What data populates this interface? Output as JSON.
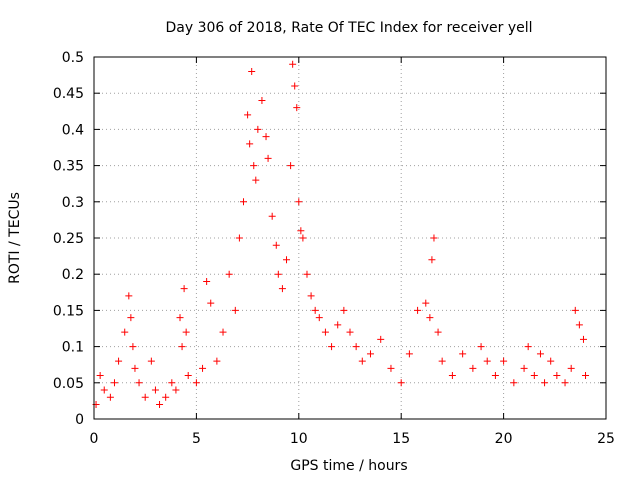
{
  "chart_data": {
    "type": "scatter",
    "title": "Day 306 of 2018, Rate Of TEC Index for receiver yell",
    "xlabel": "GPS time / hours",
    "ylabel": "ROTI / TECUs",
    "xlim": [
      0,
      25
    ],
    "ylim": [
      0,
      0.5
    ],
    "xticks": [
      0,
      5,
      10,
      15,
      20,
      25
    ],
    "yticks": [
      0,
      0.05,
      0.1,
      0.15,
      0.2,
      0.25,
      0.3,
      0.35,
      0.4,
      0.45,
      0.5
    ],
    "xtick_labels": [
      "0",
      "5",
      "10",
      "15",
      "20",
      "25"
    ],
    "ytick_labels": [
      "0",
      "0.05",
      "0.1",
      "0.15",
      "0.2",
      "0.25",
      "0.3",
      "0.35",
      "0.4",
      "0.45",
      "0.5"
    ],
    "grid": true,
    "marker": "+",
    "color": "#ff0000",
    "series": [
      {
        "name": "ROTI",
        "x": [
          0.1,
          0.3,
          0.5,
          0.8,
          1.0,
          1.2,
          1.5,
          1.7,
          1.8,
          1.9,
          2.0,
          2.2,
          2.5,
          2.8,
          3.0,
          3.2,
          3.5,
          3.8,
          4.0,
          4.2,
          4.3,
          4.4,
          4.5,
          4.6,
          5.0,
          5.3,
          5.5,
          5.7,
          6.0,
          6.3,
          6.6,
          6.9,
          7.1,
          7.3,
          7.5,
          7.6,
          7.7,
          7.8,
          7.9,
          8.0,
          8.2,
          8.4,
          8.5,
          8.7,
          8.9,
          9.0,
          9.2,
          9.4,
          9.6,
          9.7,
          9.8,
          9.9,
          10.0,
          10.1,
          10.2,
          10.4,
          10.6,
          10.8,
          11.0,
          11.3,
          11.6,
          11.9,
          12.2,
          12.5,
          12.8,
          13.1,
          13.5,
          14.0,
          14.5,
          15.0,
          15.4,
          15.8,
          16.2,
          16.4,
          16.5,
          16.6,
          16.8,
          17.0,
          17.5,
          18.0,
          18.5,
          18.9,
          19.2,
          19.6,
          20.0,
          20.5,
          21.0,
          21.2,
          21.5,
          21.8,
          22.0,
          22.3,
          22.6,
          23.0,
          23.3,
          23.5,
          23.7,
          23.9,
          24.0
        ],
        "y": [
          0.02,
          0.06,
          0.04,
          0.03,
          0.05,
          0.08,
          0.12,
          0.17,
          0.14,
          0.1,
          0.07,
          0.05,
          0.03,
          0.08,
          0.04,
          0.02,
          0.03,
          0.05,
          0.04,
          0.14,
          0.1,
          0.18,
          0.12,
          0.06,
          0.05,
          0.07,
          0.19,
          0.16,
          0.08,
          0.12,
          0.2,
          0.15,
          0.25,
          0.3,
          0.42,
          0.38,
          0.48,
          0.35,
          0.33,
          0.4,
          0.44,
          0.39,
          0.36,
          0.28,
          0.24,
          0.2,
          0.18,
          0.22,
          0.35,
          0.49,
          0.46,
          0.43,
          0.3,
          0.26,
          0.25,
          0.2,
          0.17,
          0.15,
          0.14,
          0.12,
          0.1,
          0.13,
          0.15,
          0.12,
          0.1,
          0.08,
          0.09,
          0.11,
          0.07,
          0.05,
          0.09,
          0.15,
          0.16,
          0.14,
          0.22,
          0.25,
          0.12,
          0.08,
          0.06,
          0.09,
          0.07,
          0.1,
          0.08,
          0.06,
          0.08,
          0.05,
          0.07,
          0.1,
          0.06,
          0.09,
          0.05,
          0.08,
          0.06,
          0.05,
          0.07,
          0.15,
          0.13,
          0.11,
          0.06
        ]
      }
    ]
  }
}
